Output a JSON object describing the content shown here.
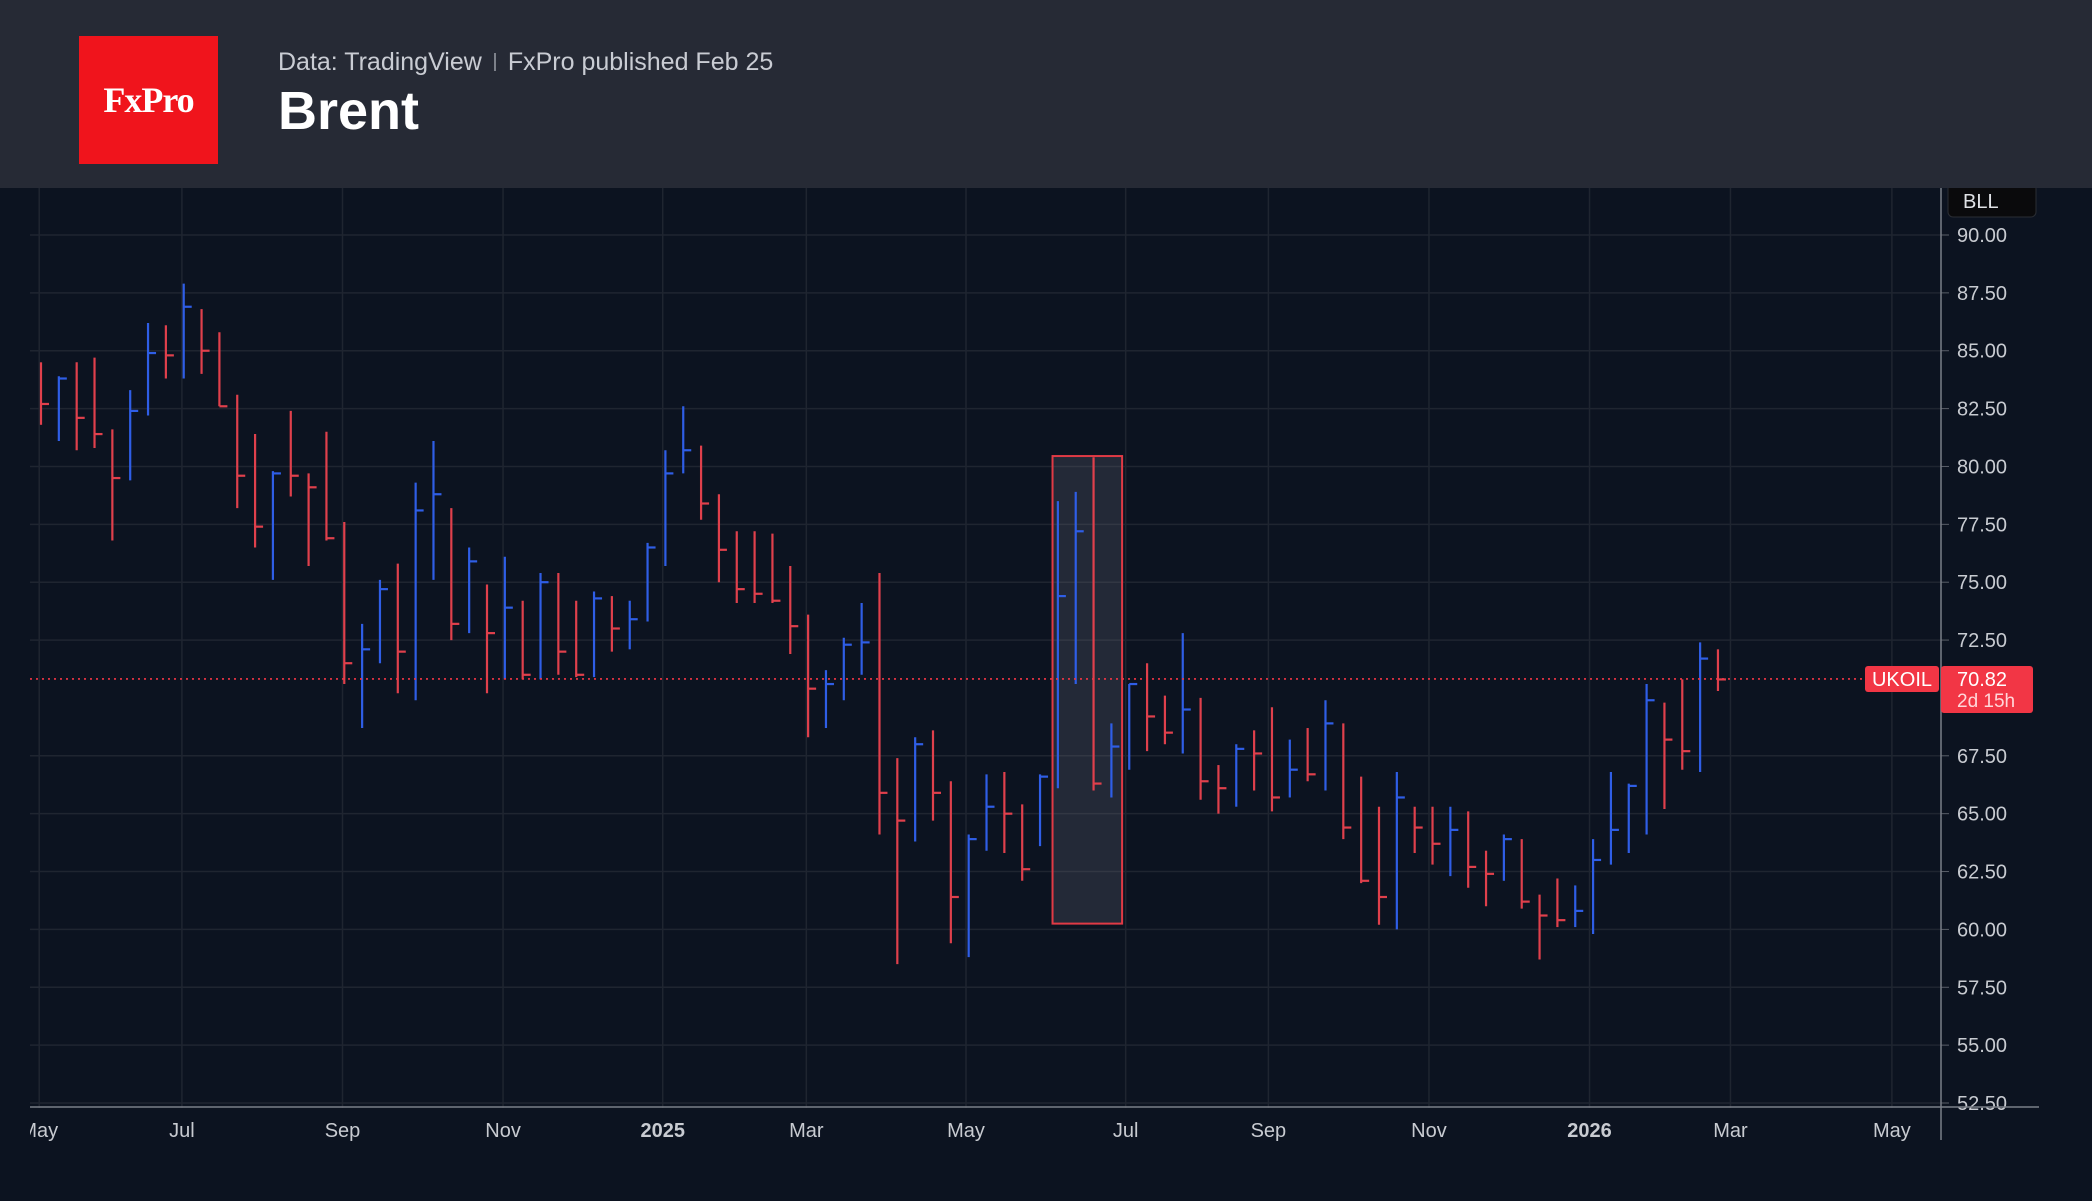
{
  "header": {
    "logo_text": "FxPro",
    "source": "Data: TradingView",
    "published": "FxPro published Feb 25",
    "title": "Brent"
  },
  "colors": {
    "up": "#2f5ee6",
    "down": "#e0404c",
    "background": "#0c1320",
    "header": "#262a35",
    "price_label": "#f23645"
  },
  "chart_data": {
    "type": "ohlc",
    "title": "Brent",
    "interval": "weekly",
    "symbol_label": "UKOIL",
    "unit_label": "BLL",
    "last_price": 70.82,
    "countdown": "2d 15h",
    "last_price_text": "70.82",
    "ylim": [
      52.5,
      90
    ],
    "y_ticks": [
      "90.00",
      "87.50",
      "85.00",
      "82.50",
      "80.00",
      "77.50",
      "75.00",
      "72.50",
      "67.50",
      "65.00",
      "62.50",
      "60.00",
      "57.50",
      "55.00",
      "52.50"
    ],
    "x_ticks": [
      {
        "label": "May",
        "pos": -0.1,
        "bold": false
      },
      {
        "label": "Jul",
        "pos": 7.9,
        "bold": false
      },
      {
        "label": "Sep",
        "pos": 16.9,
        "bold": false
      },
      {
        "label": "Nov",
        "pos": 25.9,
        "bold": false
      },
      {
        "label": "2025",
        "pos": 34.85,
        "bold": true
      },
      {
        "label": "Mar",
        "pos": 42.9,
        "bold": false
      },
      {
        "label": "May",
        "pos": 51.85,
        "bold": false
      },
      {
        "label": "Jul",
        "pos": 60.8,
        "bold": false
      },
      {
        "label": "Sep",
        "pos": 68.8,
        "bold": false
      },
      {
        "label": "Nov",
        "pos": 77.8,
        "bold": false
      },
      {
        "label": "2026",
        "pos": 86.8,
        "bold": true
      },
      {
        "label": "Mar",
        "pos": 94.7,
        "bold": false
      },
      {
        "label": "May",
        "pos": 103.75,
        "bold": false
      }
    ],
    "grid": true,
    "highlight": {
      "from_bar": 56.7,
      "to_bar": 60.6,
      "high": 80.45,
      "low": 60.25
    },
    "bar_fields": [
      "high",
      "low",
      "close",
      "direction"
    ],
    "bars": [
      [
        84.5,
        81.8,
        82.7,
        "down"
      ],
      [
        83.9,
        81.1,
        83.8,
        "up"
      ],
      [
        84.5,
        80.7,
        82.1,
        "down"
      ],
      [
        84.7,
        80.8,
        81.4,
        "down"
      ],
      [
        81.6,
        76.8,
        79.5,
        "down"
      ],
      [
        83.3,
        79.4,
        82.4,
        "up"
      ],
      [
        86.2,
        82.2,
        84.9,
        "up"
      ],
      [
        86.1,
        83.8,
        84.8,
        "down"
      ],
      [
        87.9,
        83.8,
        86.9,
        "up"
      ],
      [
        86.8,
        84.0,
        85.0,
        "down"
      ],
      [
        85.8,
        82.6,
        82.6,
        "down"
      ],
      [
        83.1,
        78.2,
        79.6,
        "down"
      ],
      [
        81.4,
        76.5,
        77.4,
        "down"
      ],
      [
        79.8,
        75.1,
        79.7,
        "up"
      ],
      [
        82.4,
        78.7,
        79.6,
        "down"
      ],
      [
        79.7,
        75.7,
        79.1,
        "down"
      ],
      [
        81.5,
        76.8,
        76.9,
        "down"
      ],
      [
        77.6,
        70.6,
        71.5,
        "down"
      ],
      [
        73.2,
        68.7,
        72.1,
        "up"
      ],
      [
        75.1,
        71.5,
        74.7,
        "up"
      ],
      [
        75.8,
        70.2,
        72.0,
        "down"
      ],
      [
        79.3,
        69.9,
        78.1,
        "up"
      ],
      [
        81.1,
        75.1,
        78.8,
        "up"
      ],
      [
        78.2,
        72.5,
        73.2,
        "down"
      ],
      [
        76.5,
        72.8,
        75.9,
        "up"
      ],
      [
        74.9,
        70.2,
        72.8,
        "down"
      ],
      [
        76.1,
        70.8,
        73.9,
        "up"
      ],
      [
        74.2,
        70.8,
        71.0,
        "down"
      ],
      [
        75.4,
        70.8,
        75.0,
        "up"
      ],
      [
        75.4,
        71.0,
        72.0,
        "down"
      ],
      [
        74.2,
        70.9,
        71.0,
        "down"
      ],
      [
        74.6,
        70.9,
        74.3,
        "up"
      ],
      [
        74.4,
        72.0,
        73.0,
        "down"
      ],
      [
        74.2,
        72.1,
        73.4,
        "up"
      ],
      [
        76.7,
        73.3,
        76.5,
        "up"
      ],
      [
        80.7,
        75.7,
        79.7,
        "up"
      ],
      [
        82.6,
        79.7,
        80.7,
        "up"
      ],
      [
        80.9,
        77.7,
        78.4,
        "down"
      ],
      [
        78.8,
        75.0,
        76.4,
        "down"
      ],
      [
        77.2,
        74.1,
        74.7,
        "down"
      ],
      [
        77.2,
        74.1,
        74.5,
        "down"
      ],
      [
        77.1,
        74.1,
        74.2,
        "down"
      ],
      [
        75.7,
        71.9,
        73.1,
        "down"
      ],
      [
        73.6,
        68.3,
        70.4,
        "down"
      ],
      [
        71.2,
        68.7,
        70.6,
        "up"
      ],
      [
        72.6,
        69.9,
        72.3,
        "up"
      ],
      [
        74.1,
        71.0,
        72.4,
        "up"
      ],
      [
        75.4,
        64.1,
        65.9,
        "down"
      ],
      [
        67.4,
        58.5,
        64.7,
        "down"
      ],
      [
        68.3,
        63.8,
        68.0,
        "up"
      ],
      [
        68.6,
        64.7,
        65.9,
        "down"
      ],
      [
        66.4,
        59.4,
        61.4,
        "down"
      ],
      [
        64.1,
        58.8,
        63.9,
        "up"
      ],
      [
        66.7,
        63.4,
        65.3,
        "up"
      ],
      [
        66.8,
        63.3,
        65.0,
        "down"
      ],
      [
        65.4,
        62.1,
        62.6,
        "down"
      ],
      [
        66.7,
        63.6,
        66.6,
        "up"
      ],
      [
        78.5,
        66.1,
        74.4,
        "up"
      ],
      [
        78.9,
        70.6,
        77.2,
        "up"
      ],
      [
        80.4,
        66.0,
        66.3,
        "down"
      ],
      [
        68.9,
        65.7,
        67.9,
        "up"
      ],
      [
        70.6,
        66.9,
        70.6,
        "up"
      ],
      [
        71.5,
        67.7,
        69.2,
        "down"
      ],
      [
        70.1,
        68.0,
        68.5,
        "down"
      ],
      [
        72.8,
        67.6,
        69.5,
        "up"
      ],
      [
        70.0,
        65.6,
        66.4,
        "down"
      ],
      [
        67.1,
        65.0,
        66.1,
        "down"
      ],
      [
        68.0,
        65.3,
        67.8,
        "up"
      ],
      [
        68.6,
        66.0,
        67.6,
        "down"
      ],
      [
        69.6,
        65.1,
        65.7,
        "down"
      ],
      [
        68.2,
        65.7,
        66.9,
        "up"
      ],
      [
        68.7,
        66.4,
        66.7,
        "down"
      ],
      [
        69.9,
        66.0,
        68.9,
        "up"
      ],
      [
        68.9,
        63.9,
        64.4,
        "down"
      ],
      [
        66.6,
        62.0,
        62.1,
        "down"
      ],
      [
        65.3,
        60.2,
        61.4,
        "down"
      ],
      [
        66.8,
        60.0,
        65.7,
        "up"
      ],
      [
        65.3,
        63.3,
        64.4,
        "down"
      ],
      [
        65.3,
        62.8,
        63.7,
        "down"
      ],
      [
        65.3,
        62.3,
        64.3,
        "up"
      ],
      [
        65.1,
        61.8,
        62.7,
        "down"
      ],
      [
        63.4,
        61.0,
        62.4,
        "down"
      ],
      [
        64.1,
        62.1,
        63.9,
        "up"
      ],
      [
        63.9,
        60.9,
        61.2,
        "down"
      ],
      [
        61.5,
        58.7,
        60.6,
        "down"
      ],
      [
        62.2,
        60.1,
        60.4,
        "down"
      ],
      [
        61.9,
        60.1,
        60.8,
        "up"
      ],
      [
        63.9,
        59.8,
        63.0,
        "up"
      ],
      [
        66.8,
        62.8,
        64.3,
        "up"
      ],
      [
        66.3,
        63.3,
        66.2,
        "up"
      ],
      [
        70.6,
        64.1,
        69.9,
        "up"
      ],
      [
        69.8,
        65.2,
        68.2,
        "down"
      ],
      [
        70.8,
        66.9,
        67.7,
        "down"
      ],
      [
        72.4,
        66.8,
        71.7,
        "up"
      ],
      [
        72.1,
        70.3,
        70.8,
        "down"
      ]
    ]
  }
}
